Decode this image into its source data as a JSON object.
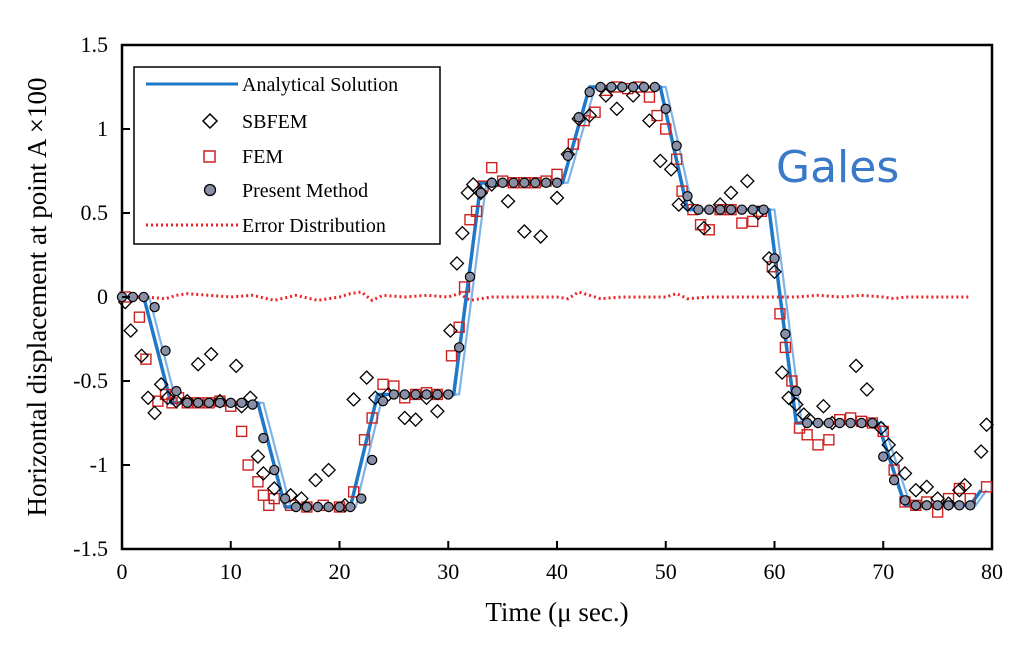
{
  "chart_data": {
    "type": "line",
    "xlabel": "Time (μ sec.)",
    "ylabel": "Horizontal displacement at point A ×100",
    "xlim": [
      0,
      80
    ],
    "ylim": [
      -1.5,
      1.5
    ],
    "xticks": [
      "0",
      "10",
      "20",
      "30",
      "40",
      "50",
      "60",
      "70",
      "80"
    ],
    "yticks": [
      "-1.5",
      "-1",
      "-0.5",
      "0",
      "0.5",
      "1",
      "1.5"
    ],
    "grid": false,
    "legend_position": "top-left",
    "watermark": "Gales",
    "colors": {
      "analytical": "#1f78c8",
      "analytical_light": "#7fb3e6",
      "sbfem": "#000000",
      "fem": "#cc2222",
      "present_fill": "#8a8fa8",
      "error": "#ee2222"
    },
    "series": [
      {
        "name": "Analytical Solution",
        "style": "line",
        "x": [
          0,
          2,
          4.5,
          12.5,
          15,
          21,
          23.5,
          30.5,
          33,
          40.5,
          43,
          49.5,
          52,
          59.5,
          62,
          69.5,
          72,
          78,
          79
        ],
        "y": [
          0,
          0,
          -0.63,
          -0.63,
          -1.25,
          -1.25,
          -0.58,
          -0.58,
          0.68,
          0.68,
          1.25,
          1.25,
          0.52,
          0.52,
          -0.75,
          -0.75,
          -1.24,
          -1.24,
          -1.15
        ]
      },
      {
        "name": "SBFEM",
        "style": "diamond",
        "x": [
          0.3,
          0.8,
          1.8,
          2.4,
          3,
          3.6,
          4.2,
          5,
          6,
          7,
          8.2,
          9,
          10.5,
          11,
          11.8,
          12.5,
          13,
          14,
          15.5,
          16.5,
          17.8,
          19,
          20.5,
          21.3,
          22.5,
          23.3,
          24.5,
          26,
          27,
          28,
          29,
          30.2,
          30.8,
          31.3,
          31.8,
          32.3,
          33,
          34,
          35.5,
          37,
          38.5,
          40,
          41,
          42,
          43,
          44.5,
          45.5,
          47,
          48.5,
          49.5,
          50.5,
          51.2,
          52,
          53.5,
          55,
          56,
          57.5,
          58.5,
          59.5,
          60,
          60.7,
          61.3,
          62,
          62.7,
          63.2,
          64.5,
          65.3,
          67.5,
          68.5,
          69.8,
          70.5,
          71.2,
          72,
          73,
          74,
          75,
          76,
          77,
          77.5,
          79,
          79.5
        ],
        "y": [
          -0.03,
          -0.2,
          -0.35,
          -0.6,
          -0.69,
          -0.52,
          -0.6,
          -0.62,
          -0.62,
          -0.4,
          -0.34,
          -0.62,
          -0.41,
          -0.65,
          -0.6,
          -0.95,
          -1.05,
          -1.14,
          -1.18,
          -1.2,
          -1.09,
          -1.03,
          -1.24,
          -0.61,
          -0.48,
          -0.6,
          -0.58,
          -0.72,
          -0.73,
          -0.6,
          -0.68,
          -0.2,
          0.2,
          0.38,
          0.62,
          0.67,
          0.62,
          0.67,
          0.57,
          0.39,
          0.36,
          0.59,
          0.85,
          1.06,
          1.08,
          1.2,
          1.12,
          1.2,
          1.05,
          0.81,
          0.76,
          0.55,
          0.55,
          0.41,
          0.55,
          0.62,
          0.69,
          0.5,
          0.23,
          0.15,
          -0.45,
          -0.6,
          -0.64,
          -0.7,
          -0.73,
          -0.65,
          -0.75,
          -0.41,
          -0.55,
          -0.78,
          -0.88,
          -0.96,
          -1.05,
          -1.15,
          -1.13,
          -1.2,
          -1.23,
          -1.15,
          -1.12,
          -0.92,
          -0.76
        ]
      },
      {
        "name": "FEM",
        "style": "square",
        "x": [
          0.3,
          1.6,
          2.2,
          3.3,
          4,
          4.6,
          5.2,
          6,
          7,
          8,
          9,
          10,
          11,
          11.6,
          12.5,
          13,
          13.5,
          14,
          15.5,
          17,
          18.5,
          20,
          21.3,
          22.3,
          23,
          24,
          25,
          26,
          27,
          28,
          29,
          30.3,
          31,
          31.5,
          32,
          32.6,
          33.2,
          34,
          35,
          36,
          37,
          38,
          39,
          40,
          41.5,
          42.5,
          43.5,
          44.5,
          45.5,
          46.5,
          47.5,
          48.5,
          49.2,
          50,
          51,
          51.5,
          52.5,
          53.2,
          54,
          55,
          56,
          57,
          58,
          58.8,
          59.8,
          60.5,
          61,
          61.6,
          62.3,
          63,
          64,
          65,
          66,
          67,
          68,
          69,
          70,
          71,
          72,
          73,
          74,
          75,
          76,
          77,
          78,
          79.5
        ],
        "y": [
          0,
          -0.12,
          -0.37,
          -0.62,
          -0.58,
          -0.63,
          -0.6,
          -0.63,
          -0.63,
          -0.63,
          -0.62,
          -0.65,
          -0.8,
          -1.0,
          -1.1,
          -1.18,
          -1.24,
          -1.2,
          -1.24,
          -1.25,
          -1.24,
          -1.25,
          -1.16,
          -0.85,
          -0.72,
          -0.52,
          -0.53,
          -0.6,
          -0.58,
          -0.57,
          -0.58,
          -0.35,
          -0.18,
          0.06,
          0.46,
          0.51,
          0.66,
          0.77,
          0.69,
          0.68,
          0.68,
          0.68,
          0.69,
          0.73,
          0.91,
          1.05,
          1.1,
          1.23,
          1.25,
          1.24,
          1.25,
          1.19,
          1.08,
          1.0,
          0.82,
          0.63,
          0.52,
          0.43,
          0.4,
          0.52,
          0.52,
          0.44,
          0.45,
          0.51,
          0.18,
          -0.1,
          -0.3,
          -0.5,
          -0.78,
          -0.82,
          -0.88,
          -0.85,
          -0.73,
          -0.72,
          -0.74,
          -0.75,
          -0.8,
          -1.03,
          -1.22,
          -1.24,
          -1.22,
          -1.28,
          -1.2,
          -1.14,
          -1.2,
          -1.13
        ]
      },
      {
        "name": "Present Method",
        "style": "circle",
        "x": [
          0,
          1,
          2,
          3,
          4,
          5,
          6,
          7,
          8,
          9,
          10,
          11,
          12,
          13,
          14,
          15,
          16,
          17,
          18,
          19,
          20,
          21,
          22,
          23,
          24,
          25,
          26,
          27,
          28,
          29,
          30,
          31,
          32,
          33,
          34,
          35,
          36,
          37,
          38,
          39,
          40,
          41,
          42,
          43,
          44,
          45,
          46,
          47,
          48,
          49,
          50,
          51,
          52,
          53,
          54,
          55,
          56,
          57,
          58,
          59,
          60,
          61,
          62,
          63,
          64,
          65,
          66,
          67,
          68,
          69,
          70,
          71,
          72,
          73,
          74,
          75,
          76,
          77,
          78
        ],
        "y": [
          0,
          0,
          0,
          -0.06,
          -0.32,
          -0.56,
          -0.63,
          -0.63,
          -0.63,
          -0.63,
          -0.63,
          -0.63,
          -0.64,
          -0.84,
          -1.03,
          -1.2,
          -1.25,
          -1.25,
          -1.25,
          -1.25,
          -1.25,
          -1.25,
          -1.2,
          -0.97,
          -0.62,
          -0.58,
          -0.58,
          -0.58,
          -0.58,
          -0.58,
          -0.58,
          -0.3,
          0.12,
          0.62,
          0.68,
          0.68,
          0.68,
          0.68,
          0.68,
          0.68,
          0.68,
          0.84,
          1.07,
          1.22,
          1.25,
          1.25,
          1.25,
          1.25,
          1.25,
          1.25,
          1.12,
          0.9,
          0.6,
          0.52,
          0.52,
          0.52,
          0.52,
          0.52,
          0.52,
          0.52,
          0.23,
          -0.22,
          -0.56,
          -0.75,
          -0.75,
          -0.75,
          -0.75,
          -0.75,
          -0.75,
          -0.75,
          -0.95,
          -1.09,
          -1.21,
          -1.24,
          -1.24,
          -1.24,
          -1.24,
          -1.24,
          -1.24
        ]
      },
      {
        "name": "Error Distribution",
        "style": "dotted",
        "x": [
          0,
          2,
          4,
          5,
          6,
          8,
          10,
          12,
          14,
          16,
          18,
          20,
          21,
          22,
          23,
          24,
          26,
          28,
          30,
          31,
          32,
          34,
          36,
          38,
          40,
          41,
          42,
          44,
          46,
          48,
          50,
          51,
          52,
          54,
          56,
          58,
          60,
          62,
          64,
          66,
          68,
          70,
          71,
          72,
          74,
          76,
          78
        ],
        "y": [
          0,
          0,
          -0.01,
          0.01,
          0.02,
          0.01,
          0,
          0.01,
          -0.02,
          0.01,
          -0.02,
          0,
          0.02,
          0.03,
          -0.02,
          0.01,
          0,
          0.01,
          0,
          0.02,
          -0.02,
          0,
          0,
          0,
          0,
          -0.01,
          0.03,
          -0.01,
          0,
          0,
          0,
          0.02,
          -0.01,
          0,
          0,
          0,
          0,
          0,
          0.01,
          0,
          0.01,
          0,
          -0.01,
          0,
          0,
          0,
          0
        ]
      }
    ]
  }
}
